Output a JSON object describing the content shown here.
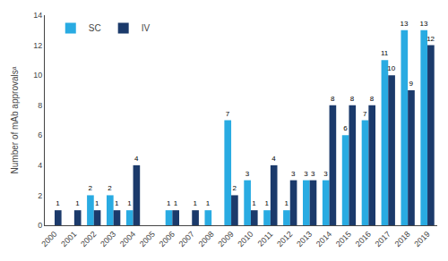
{
  "chart_data": {
    "type": "bar",
    "categories": [
      "2000",
      "2001",
      "2002",
      "2003",
      "2004",
      "2005",
      "2006",
      "2007",
      "2008",
      "2009",
      "2010",
      "2011",
      "2012",
      "2013",
      "2014",
      "2015",
      "2016",
      "2017",
      "2018",
      "2019"
    ],
    "series": [
      {
        "name": "SC",
        "color": "#29ABE2",
        "values": [
          0,
          0,
          2,
          2,
          1,
          0,
          1,
          0,
          1,
          7,
          3,
          1,
          1,
          3,
          3,
          6,
          7,
          11,
          13,
          13
        ],
        "value_labels": [
          null,
          null,
          "2",
          "2",
          "1",
          null,
          "1",
          null,
          "1",
          "7",
          "3",
          "1",
          "1",
          "3",
          "3",
          "6",
          "7",
          "11",
          "13",
          "13"
        ]
      },
      {
        "name": "IV",
        "color": "#1B3A6B",
        "values": [
          1,
          1,
          1,
          1,
          4,
          0,
          1,
          1,
          0,
          2,
          1,
          4,
          3,
          3,
          8,
          8,
          8,
          10,
          9,
          12
        ],
        "value_labels": [
          "1",
          "1",
          "1",
          "1",
          "4",
          null,
          "1",
          "1",
          null,
          "2",
          "1",
          "4",
          "3",
          "3",
          "8",
          "8",
          "8",
          "10",
          "9",
          "12"
        ]
      }
    ],
    "ylabel": "Number of mAb approvalsᵃ",
    "ylim": [
      0,
      14
    ],
    "yticks": [
      0,
      2,
      4,
      6,
      8,
      10,
      12,
      14
    ],
    "grid": false,
    "legend": "upper left",
    "data_labels": true
  }
}
